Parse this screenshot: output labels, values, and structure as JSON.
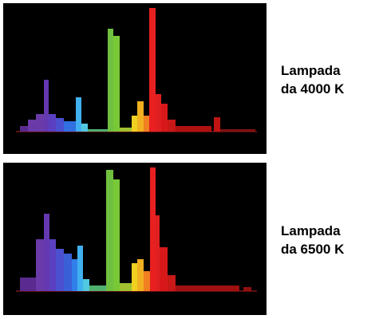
{
  "panels": [
    {
      "label": [
        "Lampada",
        "da 4000 K"
      ]
    },
    {
      "label": [
        "Lampada",
        "da 6500 K"
      ]
    }
  ]
}
